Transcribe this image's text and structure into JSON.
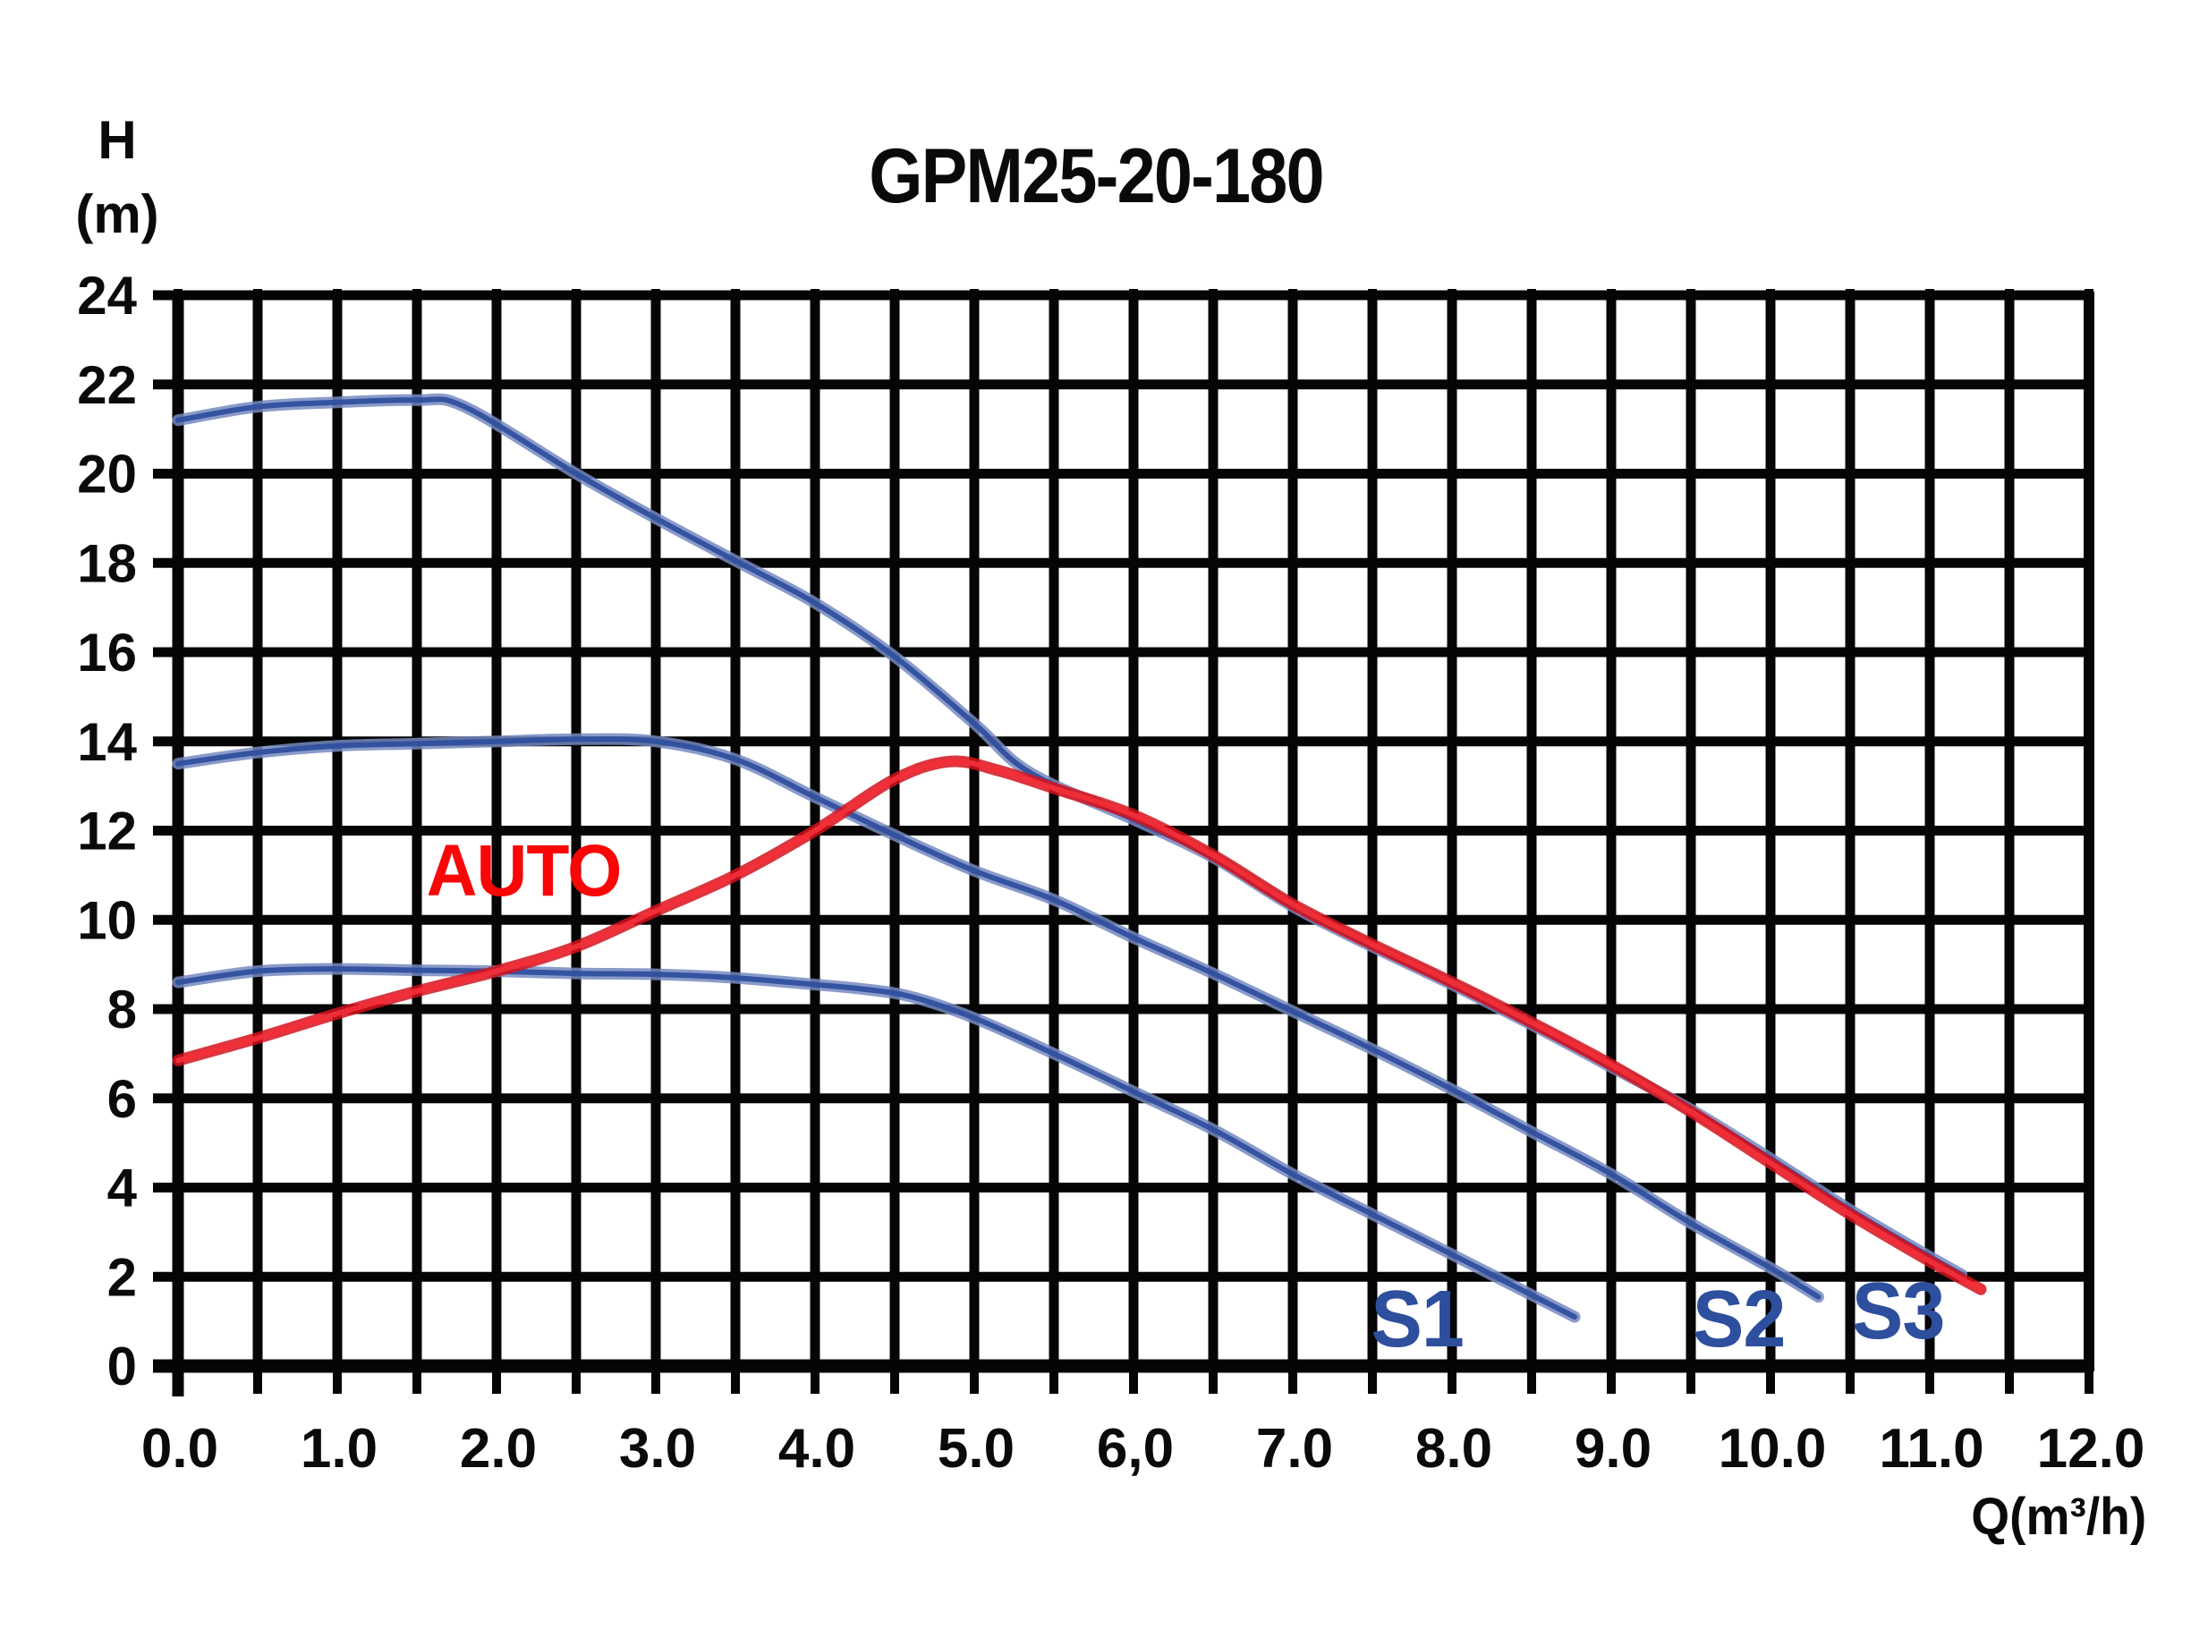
{
  "title": "GPM25-20-180",
  "y_axis": {
    "label_line1": "H",
    "label_line2": "(m)"
  },
  "x_axis": {
    "label": "Q(m³/h)"
  },
  "colors": {
    "grid": "#050505",
    "curve_blue_outer": "#7589c0",
    "curve_blue_core": "#2f4f9f",
    "curve_red_outer": "#d6121c",
    "curve_red_core": "#f22e38",
    "label_blue": "#2d4f9e",
    "label_red": "#f90606",
    "text": "#0a0a0a"
  },
  "chart_data": {
    "type": "line",
    "title": "GPM25-20-180",
    "xlabel": "Q(m³/h)",
    "ylabel": "H (m)",
    "xlim": [
      0,
      12
    ],
    "ylim": [
      0,
      24
    ],
    "x_gridline_step": 0.5,
    "y_gridline_step": 2,
    "x_tick_labels": [
      "0.0",
      "1.0",
      "2.0",
      "3.0",
      "4.0",
      "5.0",
      "6,0",
      "7.0",
      "8.0",
      "9.0",
      "10.0",
      "11.0",
      "12.0"
    ],
    "x_tick_values": [
      0,
      1,
      2,
      3,
      4,
      5,
      6,
      7,
      8,
      9,
      10,
      11,
      12
    ],
    "y_tick_values": [
      24,
      22,
      20,
      18,
      16,
      14,
      12,
      10,
      8,
      6,
      4,
      2,
      0
    ],
    "grid": true,
    "legend_position": "inline-labels",
    "series": [
      {
        "name": "S1",
        "color_core": "#2f4f9f",
        "color_outer": "#7589c0",
        "points": [
          [
            0,
            8.6
          ],
          [
            0.5,
            8.85
          ],
          [
            1,
            8.9
          ],
          [
            1.5,
            8.87
          ],
          [
            2,
            8.85
          ],
          [
            2.5,
            8.8
          ],
          [
            3,
            8.78
          ],
          [
            3.5,
            8.7
          ],
          [
            4,
            8.55
          ],
          [
            4.3,
            8.45
          ],
          [
            4.6,
            8.28
          ],
          [
            5,
            7.8
          ],
          [
            5.5,
            7.0
          ],
          [
            6,
            6.15
          ],
          [
            6.5,
            5.3
          ],
          [
            7,
            4.3
          ],
          [
            7.5,
            3.4
          ],
          [
            8,
            2.5
          ],
          [
            8.77,
            1.1
          ]
        ]
      },
      {
        "name": "S2",
        "color_core": "#2f4f9f",
        "color_outer": "#7589c0",
        "points": [
          [
            0,
            13.5
          ],
          [
            0.5,
            13.75
          ],
          [
            1,
            13.9
          ],
          [
            1.5,
            13.95
          ],
          [
            2,
            14.0
          ],
          [
            2.5,
            14.05
          ],
          [
            3,
            14.0
          ],
          [
            3.5,
            13.6
          ],
          [
            4,
            12.75
          ],
          [
            4.5,
            11.9
          ],
          [
            5,
            11.1
          ],
          [
            5.5,
            10.45
          ],
          [
            6,
            9.6
          ],
          [
            6.5,
            8.8
          ],
          [
            7,
            7.95
          ],
          [
            7.5,
            7.1
          ],
          [
            8,
            6.2
          ],
          [
            8.5,
            5.25
          ],
          [
            9,
            4.3
          ],
          [
            9.5,
            3.2
          ],
          [
            10,
            2.2
          ],
          [
            10.3,
            1.55
          ]
        ]
      },
      {
        "name": "S3",
        "color_core": "#2f4f9f",
        "color_outer": "#7589c0",
        "points": [
          [
            0,
            21.2
          ],
          [
            0.5,
            21.5
          ],
          [
            1,
            21.6
          ],
          [
            1.5,
            21.65
          ],
          [
            1.8,
            21.5
          ],
          [
            2.5,
            20.0
          ],
          [
            3,
            19.0
          ],
          [
            3.5,
            18.05
          ],
          [
            4,
            17.1
          ],
          [
            4.5,
            15.9
          ],
          [
            5,
            14.4
          ],
          [
            5.35,
            13.3
          ],
          [
            6,
            12.25
          ],
          [
            6.5,
            11.4
          ],
          [
            7,
            10.3
          ],
          [
            7.5,
            9.4
          ],
          [
            8,
            8.55
          ],
          [
            8.5,
            7.65
          ],
          [
            9,
            6.7
          ],
          [
            9.5,
            5.75
          ],
          [
            10,
            4.65
          ],
          [
            10.5,
            3.5
          ],
          [
            11,
            2.45
          ],
          [
            11.2,
            2.05
          ]
        ]
      },
      {
        "name": "AUTO",
        "color_core": "#f22e38",
        "color_outer": "#d6121c",
        "points": [
          [
            0,
            6.85
          ],
          [
            0.5,
            7.35
          ],
          [
            1,
            7.9
          ],
          [
            1.5,
            8.4
          ],
          [
            2,
            8.85
          ],
          [
            2.5,
            9.4
          ],
          [
            3,
            10.2
          ],
          [
            3.5,
            11.0
          ],
          [
            4,
            12.0
          ],
          [
            4.5,
            13.15
          ],
          [
            4.85,
            13.55
          ],
          [
            5.15,
            13.35
          ],
          [
            5.5,
            12.95
          ],
          [
            6,
            12.35
          ],
          [
            6.5,
            11.45
          ],
          [
            7,
            10.35
          ],
          [
            7.5,
            9.45
          ],
          [
            8,
            8.6
          ],
          [
            8.5,
            7.7
          ],
          [
            9,
            6.75
          ],
          [
            9.5,
            5.7
          ],
          [
            10,
            4.55
          ],
          [
            10.5,
            3.4
          ],
          [
            11,
            2.35
          ],
          [
            11.32,
            1.72
          ]
        ]
      }
    ],
    "annotations": [
      {
        "text": "AUTO",
        "q": 1.56,
        "h": 10.55,
        "color": "#f90606",
        "font_px": 82
      },
      {
        "text": "S1",
        "q": 7.49,
        "h": 0.44,
        "color": "#2d4f9e",
        "font_px": 90
      },
      {
        "text": "S2",
        "q": 9.51,
        "h": 0.44,
        "color": "#2d4f9e",
        "font_px": 90
      },
      {
        "text": "S3",
        "q": 10.51,
        "h": 0.62,
        "color": "#2d4f9e",
        "font_px": 90
      }
    ]
  }
}
